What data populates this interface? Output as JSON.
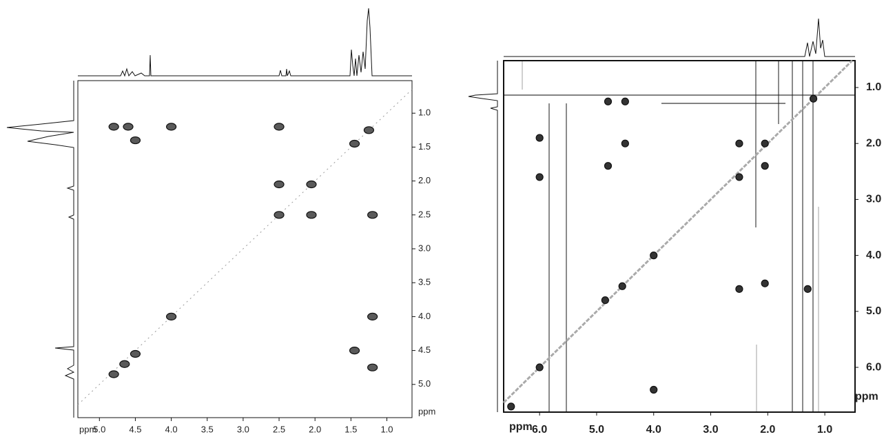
{
  "chart_data": [
    {
      "type": "scatter",
      "x_label": "ppm",
      "y_label": "ppm",
      "color": "#5a5a5a",
      "xlim": [
        5.3,
        0.65
      ],
      "ylim": [
        0.52,
        5.49
      ],
      "xticks": [
        {
          "value": 5,
          "label": "5.0"
        },
        4.5,
        {
          "value": 4,
          "label": "4.0"
        },
        3.5,
        {
          "value": 3,
          "label": "3.0"
        },
        2.5,
        {
          "value": 2,
          "label": "2.0"
        },
        1.5,
        {
          "value": 1,
          "label": "1.0"
        }
      ],
      "yticks": [
        {
          "value": 1,
          "label": "1.0"
        },
        1.5,
        {
          "value": 2,
          "label": "2.0"
        },
        2.5,
        {
          "value": 3,
          "label": "3.0"
        },
        3.5,
        {
          "value": 4,
          "label": "4.0"
        },
        4.5,
        {
          "value": 5,
          "label": "5.0"
        }
      ],
      "x": [
        4.8,
        4.6,
        4.5,
        4.0,
        2.5,
        1.25,
        1.45,
        2.5,
        2.05,
        2.5,
        2.05,
        1.2,
        4.0,
        1.2,
        4.8,
        4.65,
        4.5,
        1.45,
        1.2
      ],
      "y": [
        1.2,
        1.2,
        1.4,
        1.2,
        1.2,
        1.25,
        1.45,
        2.05,
        2.05,
        2.5,
        2.5,
        2.5,
        4.0,
        4.0,
        4.85,
        4.7,
        4.55,
        4.5,
        4.75
      ]
    },
    {
      "type": "scatter",
      "x_label": "ppm",
      "y_label": "ppm",
      "color": "#333333",
      "xlim": [
        6.63,
        0.47
      ],
      "ylim": [
        0.52,
        6.8
      ],
      "xticks": [
        {
          "value": 6,
          "label": "6.0"
        },
        {
          "value": 5,
          "label": "5.0"
        },
        {
          "value": 4,
          "label": "4.0"
        },
        {
          "value": 3,
          "label": "3.0"
        },
        {
          "value": 2,
          "label": "2.0"
        },
        {
          "value": 1,
          "label": "1.0"
        }
      ],
      "yticks": [
        {
          "value": 1,
          "label": "1.0"
        },
        {
          "value": 2,
          "label": "2.0"
        },
        {
          "value": 3,
          "label": "3.0"
        },
        {
          "value": 4,
          "label": "4.0"
        },
        {
          "value": 5,
          "label": "5.0"
        },
        {
          "value": 6,
          "label": "6.0"
        }
      ],
      "x": [
        1.2,
        4.8,
        4.5,
        2.5,
        2.05,
        2.5,
        2.05,
        4.0,
        4.85,
        4.55,
        2.5,
        2.05,
        6.0,
        6.0,
        4.8,
        4.5,
        1.3,
        6.0,
        4.0,
        6.5
      ],
      "y": [
        1.2,
        1.25,
        1.25,
        2.0,
        2.0,
        2.6,
        2.4,
        4.0,
        4.8,
        4.55,
        4.6,
        4.5,
        1.9,
        2.6,
        2.4,
        2.0,
        4.6,
        6.0,
        6.4,
        6.7
      ]
    }
  ]
}
